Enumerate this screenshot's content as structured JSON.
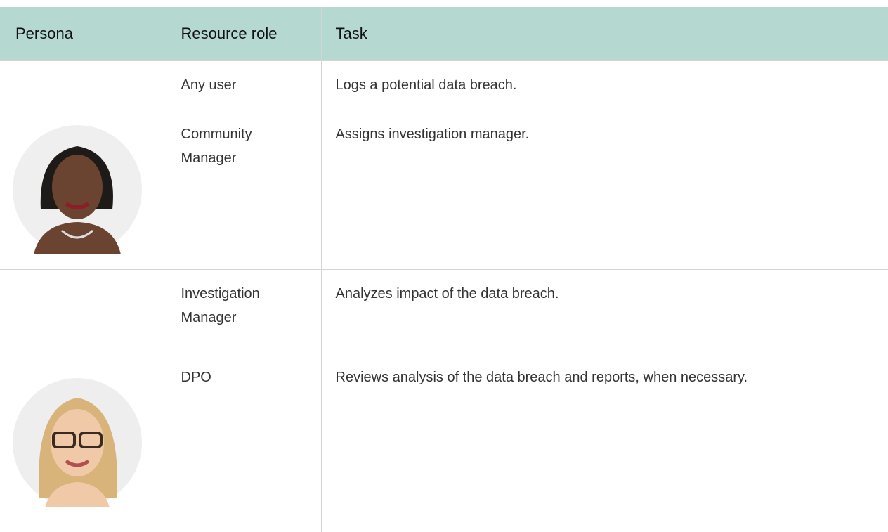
{
  "table": {
    "header": [
      "Persona",
      "Resource role",
      "Task"
    ],
    "rows": [
      {
        "role": "Any user",
        "task": "Logs a potential data breach."
      },
      {
        "role": "Community Manager",
        "task": "Assigns investigation manager."
      },
      {
        "role": "Investigation Manager",
        "task": "Analyzes impact of the data breach."
      },
      {
        "role": "DPO",
        "task": "Reviews analysis of the data breach and reports, when necessary."
      }
    ]
  }
}
